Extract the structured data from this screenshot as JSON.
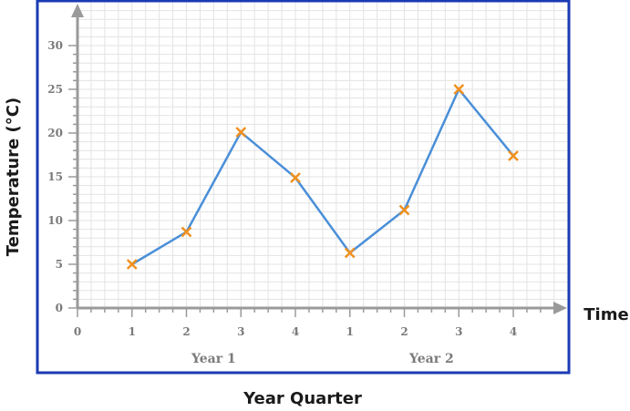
{
  "chart_data": {
    "type": "line",
    "title": "",
    "xlabel": "Year Quarter",
    "ylabel": "Temperature (°C)",
    "x_axis_end_label": "Time",
    "origin_label": "0",
    "x_tick_labels": [
      "1",
      "2",
      "3",
      "4",
      "1",
      "2",
      "3",
      "4"
    ],
    "groups": [
      {
        "label": "Year 1",
        "quarters": [
          1,
          2,
          3,
          4
        ]
      },
      {
        "label": "Year 2",
        "quarters": [
          5,
          6,
          7,
          8
        ]
      }
    ],
    "y_ticks": [
      "5",
      "10",
      "15",
      "20",
      "25",
      "30"
    ],
    "ylim": [
      0,
      35
    ],
    "grid": true,
    "series": [
      {
        "x": [
          1,
          2,
          3,
          4,
          5,
          6,
          7,
          8
        ],
        "values": [
          5,
          8.7,
          20.1,
          14.9,
          6.3,
          11.2,
          25,
          17.4
        ]
      }
    ],
    "line_color": "#4a8fd8",
    "marker_color": "#f0901e",
    "frame_color": "#1b3bb3"
  }
}
